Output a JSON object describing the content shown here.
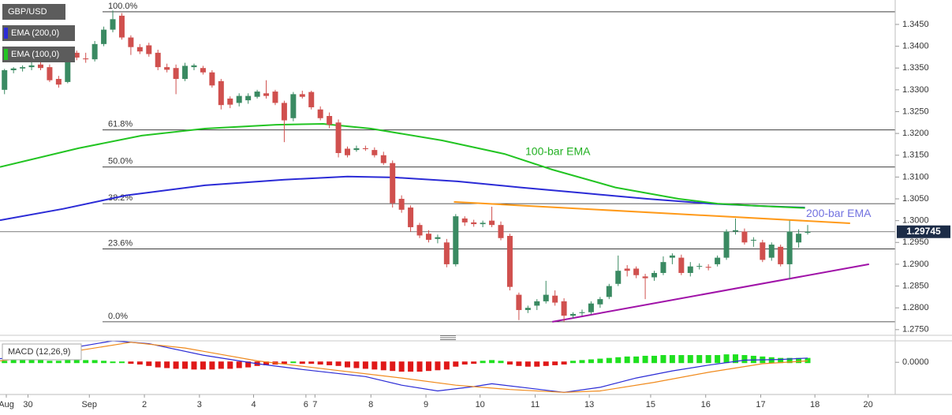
{
  "chart_data": [
    {
      "type": "candlestick",
      "title": "GBP/USD",
      "xlim": [
        -0.5,
        98.7
      ],
      "ylim": [
        1.2737,
        1.3506
      ],
      "xticks": [
        {
          "value": 0.2,
          "label": "Aug"
        },
        {
          "value": 2.6,
          "label": "30"
        },
        {
          "value": 9.4,
          "label": "Sep"
        },
        {
          "value": 15.5,
          "label": "2"
        },
        {
          "value": 21.6,
          "label": "3"
        },
        {
          "value": 27.6,
          "label": "4"
        },
        {
          "value": 33.4,
          "label": "6"
        },
        {
          "value": 34.4,
          "label": "7"
        },
        {
          "value": 40.6,
          "label": "8"
        },
        {
          "value": 46.7,
          "label": "9"
        },
        {
          "value": 52.7,
          "label": "10"
        },
        {
          "value": 58.8,
          "label": "11"
        },
        {
          "value": 64.8,
          "label": "13"
        },
        {
          "value": 71.6,
          "label": "15"
        },
        {
          "value": 77.7,
          "label": "16"
        },
        {
          "value": 83.8,
          "label": "17"
        },
        {
          "value": 89.8,
          "label": "18"
        },
        {
          "value": 95.7,
          "label": "20"
        }
      ],
      "yticks": [
        {
          "value": 1.275,
          "label": "1.2750"
        },
        {
          "value": 1.28,
          "label": "1.2800"
        },
        {
          "value": 1.285,
          "label": "1.2850"
        },
        {
          "value": 1.29,
          "label": "1.2900"
        },
        {
          "value": 1.295,
          "label": "1.2950"
        },
        {
          "value": 1.3,
          "label": "1.3000"
        },
        {
          "value": 1.305,
          "label": "1.3050"
        },
        {
          "value": 1.31,
          "label": "1.3100"
        },
        {
          "value": 1.315,
          "label": "1.3150"
        },
        {
          "value": 1.32,
          "label": "1.3200"
        },
        {
          "value": 1.325,
          "label": "1.3250"
        },
        {
          "value": 1.33,
          "label": "1.3300"
        },
        {
          "value": 1.335,
          "label": "1.3350"
        },
        {
          "value": 1.34,
          "label": "1.3400"
        },
        {
          "value": 1.345,
          "label": "1.3450"
        }
      ],
      "up_color": "#3a8a62",
      "down_color": "#d0504e",
      "open": [
        1.33,
        1.3345,
        1.3349,
        1.3352,
        1.3358,
        1.3352,
        1.3325,
        1.3318,
        1.3385,
        1.3372,
        1.337,
        1.3405,
        1.3438,
        1.347,
        1.342,
        1.3398,
        1.3402,
        1.3385,
        1.3352,
        1.335,
        1.3325,
        1.3352,
        1.335,
        1.334,
        1.332,
        1.328,
        1.327,
        1.3276,
        1.3284,
        1.3292,
        1.3296,
        1.327,
        1.3235,
        1.329,
        1.3295,
        1.3255,
        1.324,
        1.3225,
        1.3165,
        1.3162,
        1.3166,
        1.3162,
        1.315,
        1.3132,
        1.305,
        1.303,
        1.299,
        1.297,
        1.2958,
        1.295,
        1.29,
        1.3005,
        1.2996,
        1.2992,
        1.3,
        1.299,
        1.2965,
        1.283,
        1.2795,
        1.2805,
        1.2815,
        1.2828,
        1.2815,
        1.2782,
        1.2788,
        1.279,
        1.2808,
        1.2825,
        1.2855,
        1.289,
        1.289,
        1.2872,
        1.287,
        1.288,
        1.2915,
        1.2915,
        1.288,
        1.2895,
        1.2894,
        1.29,
        1.2915,
        1.2975,
        1.2975,
        1.2955,
        1.295,
        1.2915,
        1.294,
        1.29,
        1.295,
        1.2972
      ],
      "high": [
        1.3348,
        1.3352,
        1.3356,
        1.3365,
        1.3366,
        1.3358,
        1.3332,
        1.3385,
        1.339,
        1.3385,
        1.3412,
        1.3445,
        1.3482,
        1.3476,
        1.3425,
        1.3405,
        1.3408,
        1.3392,
        1.336,
        1.3358,
        1.3362,
        1.336,
        1.3355,
        1.3345,
        1.3325,
        1.3285,
        1.3292,
        1.3292,
        1.33,
        1.3322,
        1.33,
        1.3275,
        1.3295,
        1.3298,
        1.3298,
        1.3262,
        1.3248,
        1.3232,
        1.317,
        1.3172,
        1.3172,
        1.3168,
        1.3158,
        1.3138,
        1.3058,
        1.3035,
        1.2995,
        1.2978,
        1.2968,
        1.2958,
        1.3015,
        1.301,
        1.3002,
        1.3,
        1.3032,
        1.2998,
        1.297,
        1.2835,
        1.2805,
        1.282,
        1.2862,
        1.284,
        1.2822,
        1.279,
        1.2796,
        1.2815,
        1.2825,
        1.2855,
        1.292,
        1.2898,
        1.2895,
        1.2878,
        1.2885,
        1.2918,
        1.2925,
        1.2922,
        1.2905,
        1.2902,
        1.29,
        1.292,
        1.298,
        1.3005,
        1.2982,
        1.2962,
        1.2956,
        1.295,
        1.2945,
        1.3,
        1.298,
        1.299
      ],
      "low": [
        1.329,
        1.3338,
        1.3342,
        1.3345,
        1.3345,
        1.3318,
        1.3305,
        1.3315,
        1.3368,
        1.3362,
        1.3365,
        1.34,
        1.3432,
        1.3415,
        1.338,
        1.3382,
        1.3376,
        1.3345,
        1.334,
        1.329,
        1.332,
        1.3345,
        1.3335,
        1.3305,
        1.3255,
        1.3258,
        1.3262,
        1.3268,
        1.328,
        1.328,
        1.3265,
        1.318,
        1.3228,
        1.328,
        1.3255,
        1.323,
        1.3212,
        1.3145,
        1.3145,
        1.3158,
        1.316,
        1.3145,
        1.3128,
        1.303,
        1.3018,
        1.2975,
        1.296,
        1.295,
        1.2948,
        1.2893,
        1.2895,
        1.2988,
        1.2986,
        1.2985,
        1.2985,
        1.2955,
        1.284,
        1.2772,
        1.2788,
        1.2795,
        1.281,
        1.2805,
        1.2768,
        1.2776,
        1.2782,
        1.2785,
        1.28,
        1.282,
        1.285,
        1.2872,
        1.2868,
        1.282,
        1.2862,
        1.2875,
        1.29,
        1.2875,
        1.2872,
        1.2888,
        1.2886,
        1.2895,
        1.291,
        1.2968,
        1.2945,
        1.294,
        1.2905,
        1.2908,
        1.2895,
        1.2865,
        1.2938,
        1.2968
      ],
      "close": [
        1.3345,
        1.3349,
        1.3352,
        1.3356,
        1.335,
        1.3322,
        1.3312,
        1.3375,
        1.3374,
        1.337,
        1.3405,
        1.3438,
        1.3462,
        1.342,
        1.3398,
        1.3388,
        1.3382,
        1.3352,
        1.3346,
        1.3325,
        1.3355,
        1.3356,
        1.334,
        1.331,
        1.3265,
        1.3266,
        1.3286,
        1.3286,
        1.3296,
        1.3286,
        1.327,
        1.323,
        1.329,
        1.3284,
        1.326,
        1.3235,
        1.322,
        1.3155,
        1.315,
        1.3166,
        1.3164,
        1.315,
        1.3132,
        1.304,
        1.3025,
        1.2985,
        1.2966,
        1.2956,
        1.2962,
        1.29,
        1.301,
        1.2996,
        1.2992,
        1.2995,
        1.299,
        1.296,
        1.2848,
        1.2795,
        1.28,
        1.2815,
        1.283,
        1.2812,
        1.2782,
        1.2786,
        1.279,
        1.281,
        1.282,
        1.285,
        1.2885,
        1.2885,
        1.2875,
        1.2868,
        1.288,
        1.2905,
        1.292,
        1.288,
        1.2895,
        1.2896,
        1.2892,
        1.2915,
        1.2975,
        1.2978,
        1.295,
        1.2956,
        1.291,
        1.2945,
        1.29,
        1.2975,
        1.297,
        1.29745
      ],
      "series": [
        {
          "name": "EMA (200,0)",
          "label": "200-bar EMA",
          "color": "#2b2bd6",
          "label_color": "#7272e0",
          "x": [
            -0.5,
            6.5,
            13.5,
            22.2,
            31,
            38,
            43.2,
            50.2,
            57.2,
            64.2,
            71.2,
            78.2,
            83.4,
            88.7
          ],
          "values": [
            1.3001,
            1.3027,
            1.3058,
            1.3081,
            1.3094,
            1.3101,
            1.3099,
            1.309,
            1.3076,
            1.3063,
            1.305,
            1.3039,
            1.3034,
            1.303
          ]
        },
        {
          "name": "EMA (100,0)",
          "label": "100-bar EMA",
          "color": "#22c422",
          "label_color": "#22b022",
          "x": [
            -0.5,
            8.2,
            15.2,
            22.2,
            30.1,
            35.3,
            40.6,
            48.5,
            55.4,
            60.7,
            67.7,
            74.7,
            79.0,
            83.4,
            88.7
          ],
          "values": [
            1.3123,
            1.3166,
            1.3195,
            1.3211,
            1.322,
            1.3222,
            1.3211,
            1.3184,
            1.3153,
            1.3117,
            1.3076,
            1.305,
            1.3039,
            1.3034,
            1.3029
          ]
        }
      ],
      "trendlines": [
        {
          "color": "#ff9a1a",
          "x": [
            49.8,
            93.7
          ],
          "values": [
            1.3043,
            1.2994
          ]
        },
        {
          "color": "#a012a8",
          "x": [
            60.7,
            95.8
          ],
          "values": [
            1.2768,
            1.29
          ]
        }
      ],
      "levels": [
        {
          "label": "100.0%",
          "value": 1.3479
        },
        {
          "label": "61.8%",
          "value": 1.3208
        },
        {
          "label": "50.0%",
          "value": 1.3123
        },
        {
          "label": "38.2%",
          "value": 1.3039
        },
        {
          "label": "23.6%",
          "value": 1.2935
        },
        {
          "label": "0.0%",
          "value": 1.2768
        }
      ],
      "last_price": 1.29745
    },
    {
      "type": "macd",
      "title": "MACD (12,26,9)",
      "xlim": [
        -0.5,
        98.7
      ],
      "ylim": [
        -0.0045,
        0.003
      ],
      "yticks": [
        {
          "value": 0,
          "label": "0.0000"
        }
      ],
      "up_color": "#1fe01f",
      "down_color": "#e01818",
      "histogram": [
        0.0001,
        0.0002,
        0.0002,
        0.0002,
        0.0002,
        0.0001,
        0.0001,
        0.0002,
        0.0002,
        0.0002,
        0.0002,
        0.0001,
        0,
        0,
        -0.0001,
        -0.0002,
        -0.0004,
        -0.0006,
        -0.0007,
        -0.0008,
        -0.0008,
        -0.0009,
        -0.0009,
        -0.0009,
        -0.0008,
        -0.0008,
        -0.0007,
        -0.0006,
        -0.0004,
        -0.0003,
        -0.0002,
        -0.0001,
        0,
        -0.0001,
        -0.0001,
        -0.0002,
        -0.0003,
        -0.0004,
        -0.0006,
        -0.0007,
        -0.0008,
        -0.0009,
        -0.001,
        -0.0011,
        -0.0012,
        -0.0012,
        -0.0012,
        -0.0011,
        -0.001,
        -0.0009,
        -0.0005,
        -0.0002,
        -0.0001,
        0.0001,
        0.0002,
        0.0001,
        -0.0002,
        -0.0004,
        -0.0005,
        -0.0005,
        -0.0004,
        -0.0003,
        -0.0002,
        0.0001,
        0.0002,
        0.0003,
        0.0004,
        0.0005,
        0.0006,
        0.0007,
        0.0007,
        0.0008,
        0.0008,
        0.0009,
        0.0009,
        0.0009,
        0.0009,
        0.0009,
        0.0009,
        0.0009,
        0.001,
        0.001,
        0.0009,
        0.0008,
        0.0007,
        0.0006,
        0.0005,
        0.0005,
        0.0005,
        0.0005
      ],
      "series": [
        {
          "color": "#2b2bd6",
          "x": [
            -0.5,
            5,
            12,
            16,
            22,
            28,
            33,
            40,
            44,
            48,
            52,
            54,
            58,
            62,
            66,
            70,
            74,
            78,
            82,
            86,
            89
          ],
          "values": [
            0.0005,
            0.0015,
            0.003,
            0.0026,
            0.001,
            -0.0002,
            -0.001,
            -0.002,
            -0.0032,
            -0.004,
            -0.0034,
            -0.003,
            -0.0036,
            -0.0042,
            -0.0035,
            -0.0022,
            -0.0012,
            -0.0004,
            0.0003,
            0.0004,
            0.0006
          ]
        },
        {
          "color": "#f08a1c",
          "x": [
            -0.5,
            6,
            14,
            20,
            28,
            36,
            44,
            50,
            56,
            62,
            66,
            72,
            78,
            84,
            89
          ],
          "values": [
            0.0002,
            0.0012,
            0.0028,
            0.002,
            0.0002,
            -0.001,
            -0.0022,
            -0.0032,
            -0.0038,
            -0.0042,
            -0.004,
            -0.0028,
            -0.0014,
            -0.0002,
            0.0002
          ]
        }
      ]
    }
  ]
}
